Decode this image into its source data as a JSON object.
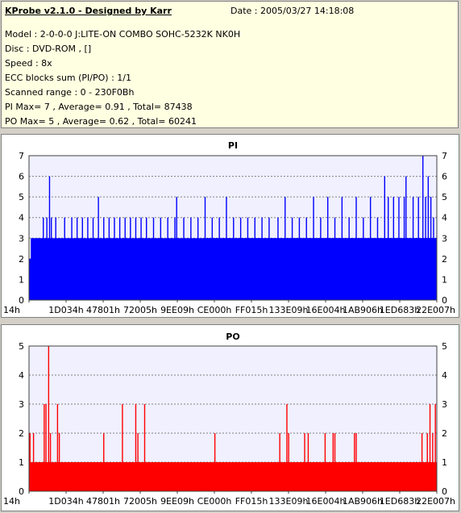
{
  "header": {
    "title": "KProbe v2.1.0 - Designed by Karr",
    "date": "Date : 2005/03/27 14:18:08",
    "lines": [
      "Model : 2-0-0-0 J:LITE-ON COMBO SOHC-5232K NK0H",
      "Disc : DVD-ROM ,  []",
      "Speed : 8x",
      "ECC blocks sum (PI/PO) : 1/1",
      "Scanned range : 0 - 230F0Bh",
      "PI Max= 7 , Average= 0.91 , Total= 87438",
      "PO Max= 5 , Average= 0.62 , Total= 60241"
    ]
  },
  "chart_data": [
    {
      "type": "bar",
      "title": "PI",
      "color": "#0000ff",
      "ylim": [
        0,
        7
      ],
      "yticks": [
        0,
        1,
        2,
        3,
        4,
        5,
        6,
        7
      ],
      "x_tick_labels": [
        "14h",
        "1D034h",
        "47801h",
        "72005h",
        "9EE09h",
        "CE000h",
        "FF015h",
        "133E09h",
        "16E004h",
        "1AB906h",
        "1ED683h",
        "22E007h"
      ],
      "x_range": [
        0,
        2293767
      ],
      "baseline_segments": [
        {
          "x": [
            0,
            2293767
          ],
          "level": 2
        },
        {
          "x": [
            10000,
            2293767
          ],
          "level": 3
        },
        {
          "x": [
            1000000,
            2293767
          ],
          "level": 3
        }
      ],
      "spikes": [
        {
          "x": 50000,
          "y": 3
        },
        {
          "x": 80000,
          "y": 4
        },
        {
          "x": 100000,
          "y": 4
        },
        {
          "x": 115000,
          "y": 6
        },
        {
          "x": 125000,
          "y": 4
        },
        {
          "x": 150000,
          "y": 4
        },
        {
          "x": 170000,
          "y": 3
        },
        {
          "x": 200000,
          "y": 4
        },
        {
          "x": 240000,
          "y": 4
        },
        {
          "x": 270000,
          "y": 4
        },
        {
          "x": 300000,
          "y": 4
        },
        {
          "x": 330000,
          "y": 4
        },
        {
          "x": 360000,
          "y": 4
        },
        {
          "x": 390000,
          "y": 5
        },
        {
          "x": 420000,
          "y": 4
        },
        {
          "x": 450000,
          "y": 4
        },
        {
          "x": 480000,
          "y": 4
        },
        {
          "x": 510000,
          "y": 4
        },
        {
          "x": 540000,
          "y": 4
        },
        {
          "x": 570000,
          "y": 4
        },
        {
          "x": 600000,
          "y": 4
        },
        {
          "x": 630000,
          "y": 4
        },
        {
          "x": 660000,
          "y": 4
        },
        {
          "x": 700000,
          "y": 4
        },
        {
          "x": 740000,
          "y": 4
        },
        {
          "x": 780000,
          "y": 4
        },
        {
          "x": 820000,
          "y": 4
        },
        {
          "x": 830000,
          "y": 5
        },
        {
          "x": 870000,
          "y": 4
        },
        {
          "x": 910000,
          "y": 4
        },
        {
          "x": 950000,
          "y": 4
        },
        {
          "x": 990000,
          "y": 5
        },
        {
          "x": 1030000,
          "y": 4
        },
        {
          "x": 1070000,
          "y": 4
        },
        {
          "x": 1110000,
          "y": 5
        },
        {
          "x": 1150000,
          "y": 4
        },
        {
          "x": 1190000,
          "y": 4
        },
        {
          "x": 1230000,
          "y": 4
        },
        {
          "x": 1270000,
          "y": 4
        },
        {
          "x": 1310000,
          "y": 4
        },
        {
          "x": 1350000,
          "y": 4
        },
        {
          "x": 1400000,
          "y": 4
        },
        {
          "x": 1440000,
          "y": 5
        },
        {
          "x": 1480000,
          "y": 4
        },
        {
          "x": 1520000,
          "y": 4
        },
        {
          "x": 1560000,
          "y": 4
        },
        {
          "x": 1600000,
          "y": 5
        },
        {
          "x": 1640000,
          "y": 4
        },
        {
          "x": 1680000,
          "y": 5
        },
        {
          "x": 1720000,
          "y": 4
        },
        {
          "x": 1760000,
          "y": 5
        },
        {
          "x": 1800000,
          "y": 4
        },
        {
          "x": 1840000,
          "y": 5
        },
        {
          "x": 1880000,
          "y": 4
        },
        {
          "x": 1920000,
          "y": 5
        },
        {
          "x": 1960000,
          "y": 4
        },
        {
          "x": 2000000,
          "y": 6
        },
        {
          "x": 2020000,
          "y": 5
        },
        {
          "x": 2050000,
          "y": 5
        },
        {
          "x": 2080000,
          "y": 5
        },
        {
          "x": 2110000,
          "y": 5
        },
        {
          "x": 2120000,
          "y": 6
        },
        {
          "x": 2160000,
          "y": 5
        },
        {
          "x": 2190000,
          "y": 5
        },
        {
          "x": 2215000,
          "y": 7
        },
        {
          "x": 2230000,
          "y": 5
        },
        {
          "x": 2245000,
          "y": 6
        },
        {
          "x": 2260000,
          "y": 5
        },
        {
          "x": 2275000,
          "y": 4
        }
      ]
    },
    {
      "type": "bar",
      "title": "PO",
      "color": "#ff0000",
      "ylim": [
        0,
        5
      ],
      "yticks": [
        0,
        1,
        2,
        3,
        4,
        5
      ],
      "x_tick_labels": [
        "14h",
        "1D034h",
        "47801h",
        "72005h",
        "9EE09h",
        "CE000h",
        "FF015h",
        "133E09h",
        "16E004h",
        "1AB906h",
        "1ED683h",
        "22E007h"
      ],
      "x_range": [
        0,
        2293767
      ],
      "baseline_segments": [
        {
          "x": [
            0,
            2293767
          ],
          "level": 1
        }
      ],
      "spikes": [
        {
          "x": 5000,
          "y": 2
        },
        {
          "x": 25000,
          "y": 2
        },
        {
          "x": 85000,
          "y": 3
        },
        {
          "x": 95000,
          "y": 3
        },
        {
          "x": 110000,
          "y": 5
        },
        {
          "x": 120000,
          "y": 2
        },
        {
          "x": 160000,
          "y": 3
        },
        {
          "x": 170000,
          "y": 2
        },
        {
          "x": 420000,
          "y": 2
        },
        {
          "x": 525000,
          "y": 3
        },
        {
          "x": 600000,
          "y": 3
        },
        {
          "x": 612000,
          "y": 2
        },
        {
          "x": 650000,
          "y": 3
        },
        {
          "x": 1045000,
          "y": 2
        },
        {
          "x": 1410000,
          "y": 2
        },
        {
          "x": 1450000,
          "y": 3
        },
        {
          "x": 1460000,
          "y": 2
        },
        {
          "x": 1550000,
          "y": 2
        },
        {
          "x": 1570000,
          "y": 2
        },
        {
          "x": 1665000,
          "y": 2
        },
        {
          "x": 1710000,
          "y": 2
        },
        {
          "x": 1720000,
          "y": 2
        },
        {
          "x": 1830000,
          "y": 2
        },
        {
          "x": 1840000,
          "y": 2
        },
        {
          "x": 2210000,
          "y": 2
        },
        {
          "x": 2240000,
          "y": 2
        },
        {
          "x": 2255000,
          "y": 3
        },
        {
          "x": 2270000,
          "y": 2
        },
        {
          "x": 2285000,
          "y": 3
        }
      ]
    }
  ]
}
